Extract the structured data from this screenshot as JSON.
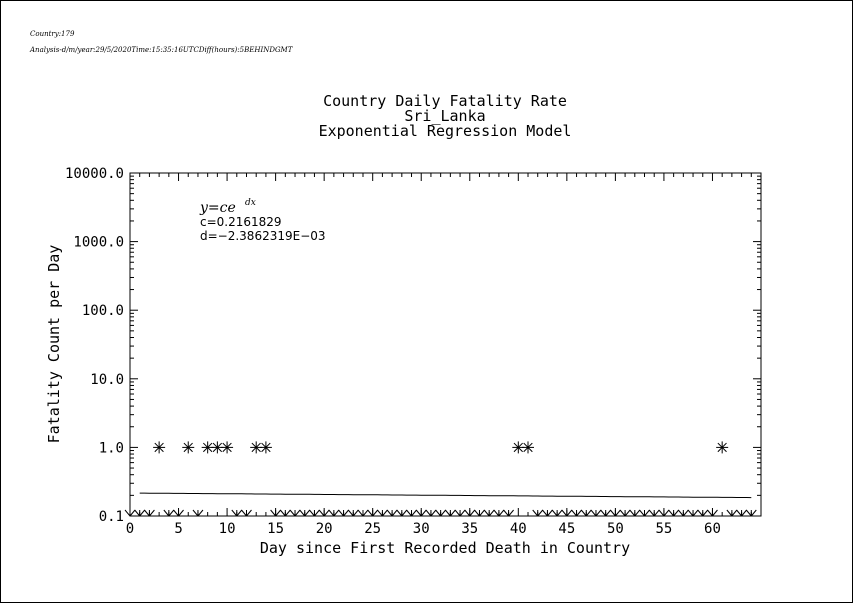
{
  "header": {
    "country_line": "Country:179",
    "analysis_line": "Analysis-d/m/year:29/5/2020Time:15:35:16UTCDiff(hours):5BEHINDGMT"
  },
  "chart_data": {
    "type": "scatter",
    "title": [
      "Country Daily Fatality Rate",
      "Sri_Lanka",
      "Exponential Regression Model"
    ],
    "xlabel": "Day since First Recorded Death in Country",
    "ylabel": "Fatality Count per Day",
    "xlim": [
      0,
      65
    ],
    "ylim": [
      0.1,
      10000.0
    ],
    "yscale": "log",
    "x_ticks": [
      0,
      5,
      10,
      15,
      20,
      25,
      30,
      35,
      40,
      45,
      50,
      55,
      60
    ],
    "y_ticks": [
      0.1,
      1.0,
      10.0,
      100.0,
      1000.0,
      10000.0
    ],
    "y_tick_labels": [
      "0.1",
      "1.0",
      "10.0",
      "100.0",
      "1000.0",
      "10000.0"
    ],
    "marker": "asterisk",
    "points": [
      {
        "x": 3,
        "y": 1
      },
      {
        "x": 6,
        "y": 1
      },
      {
        "x": 8,
        "y": 1
      },
      {
        "x": 9,
        "y": 1
      },
      {
        "x": 10,
        "y": 1
      },
      {
        "x": 13,
        "y": 1
      },
      {
        "x": 14,
        "y": 1
      },
      {
        "x": 40,
        "y": 1
      },
      {
        "x": 41,
        "y": 1
      },
      {
        "x": 61,
        "y": 1
      }
    ],
    "zero_markers_x": [
      0,
      1,
      2,
      4,
      5,
      7,
      11,
      12,
      15,
      16,
      17,
      18,
      19,
      20,
      21,
      22,
      23,
      24,
      25,
      26,
      27,
      28,
      29,
      30,
      31,
      32,
      33,
      34,
      35,
      36,
      37,
      38,
      39,
      42,
      43,
      44,
      45,
      46,
      47,
      48,
      49,
      50,
      51,
      52,
      53,
      54,
      55,
      56,
      57,
      58,
      59,
      60,
      62,
      63,
      64
    ],
    "regression": {
      "c": 0.2161829,
      "d": -0.0023862319,
      "equation_label": "y=ce",
      "exponent_label": "dx",
      "c_label": "c=0.2161829",
      "d_label": "d=−2.3862319E−03"
    }
  }
}
